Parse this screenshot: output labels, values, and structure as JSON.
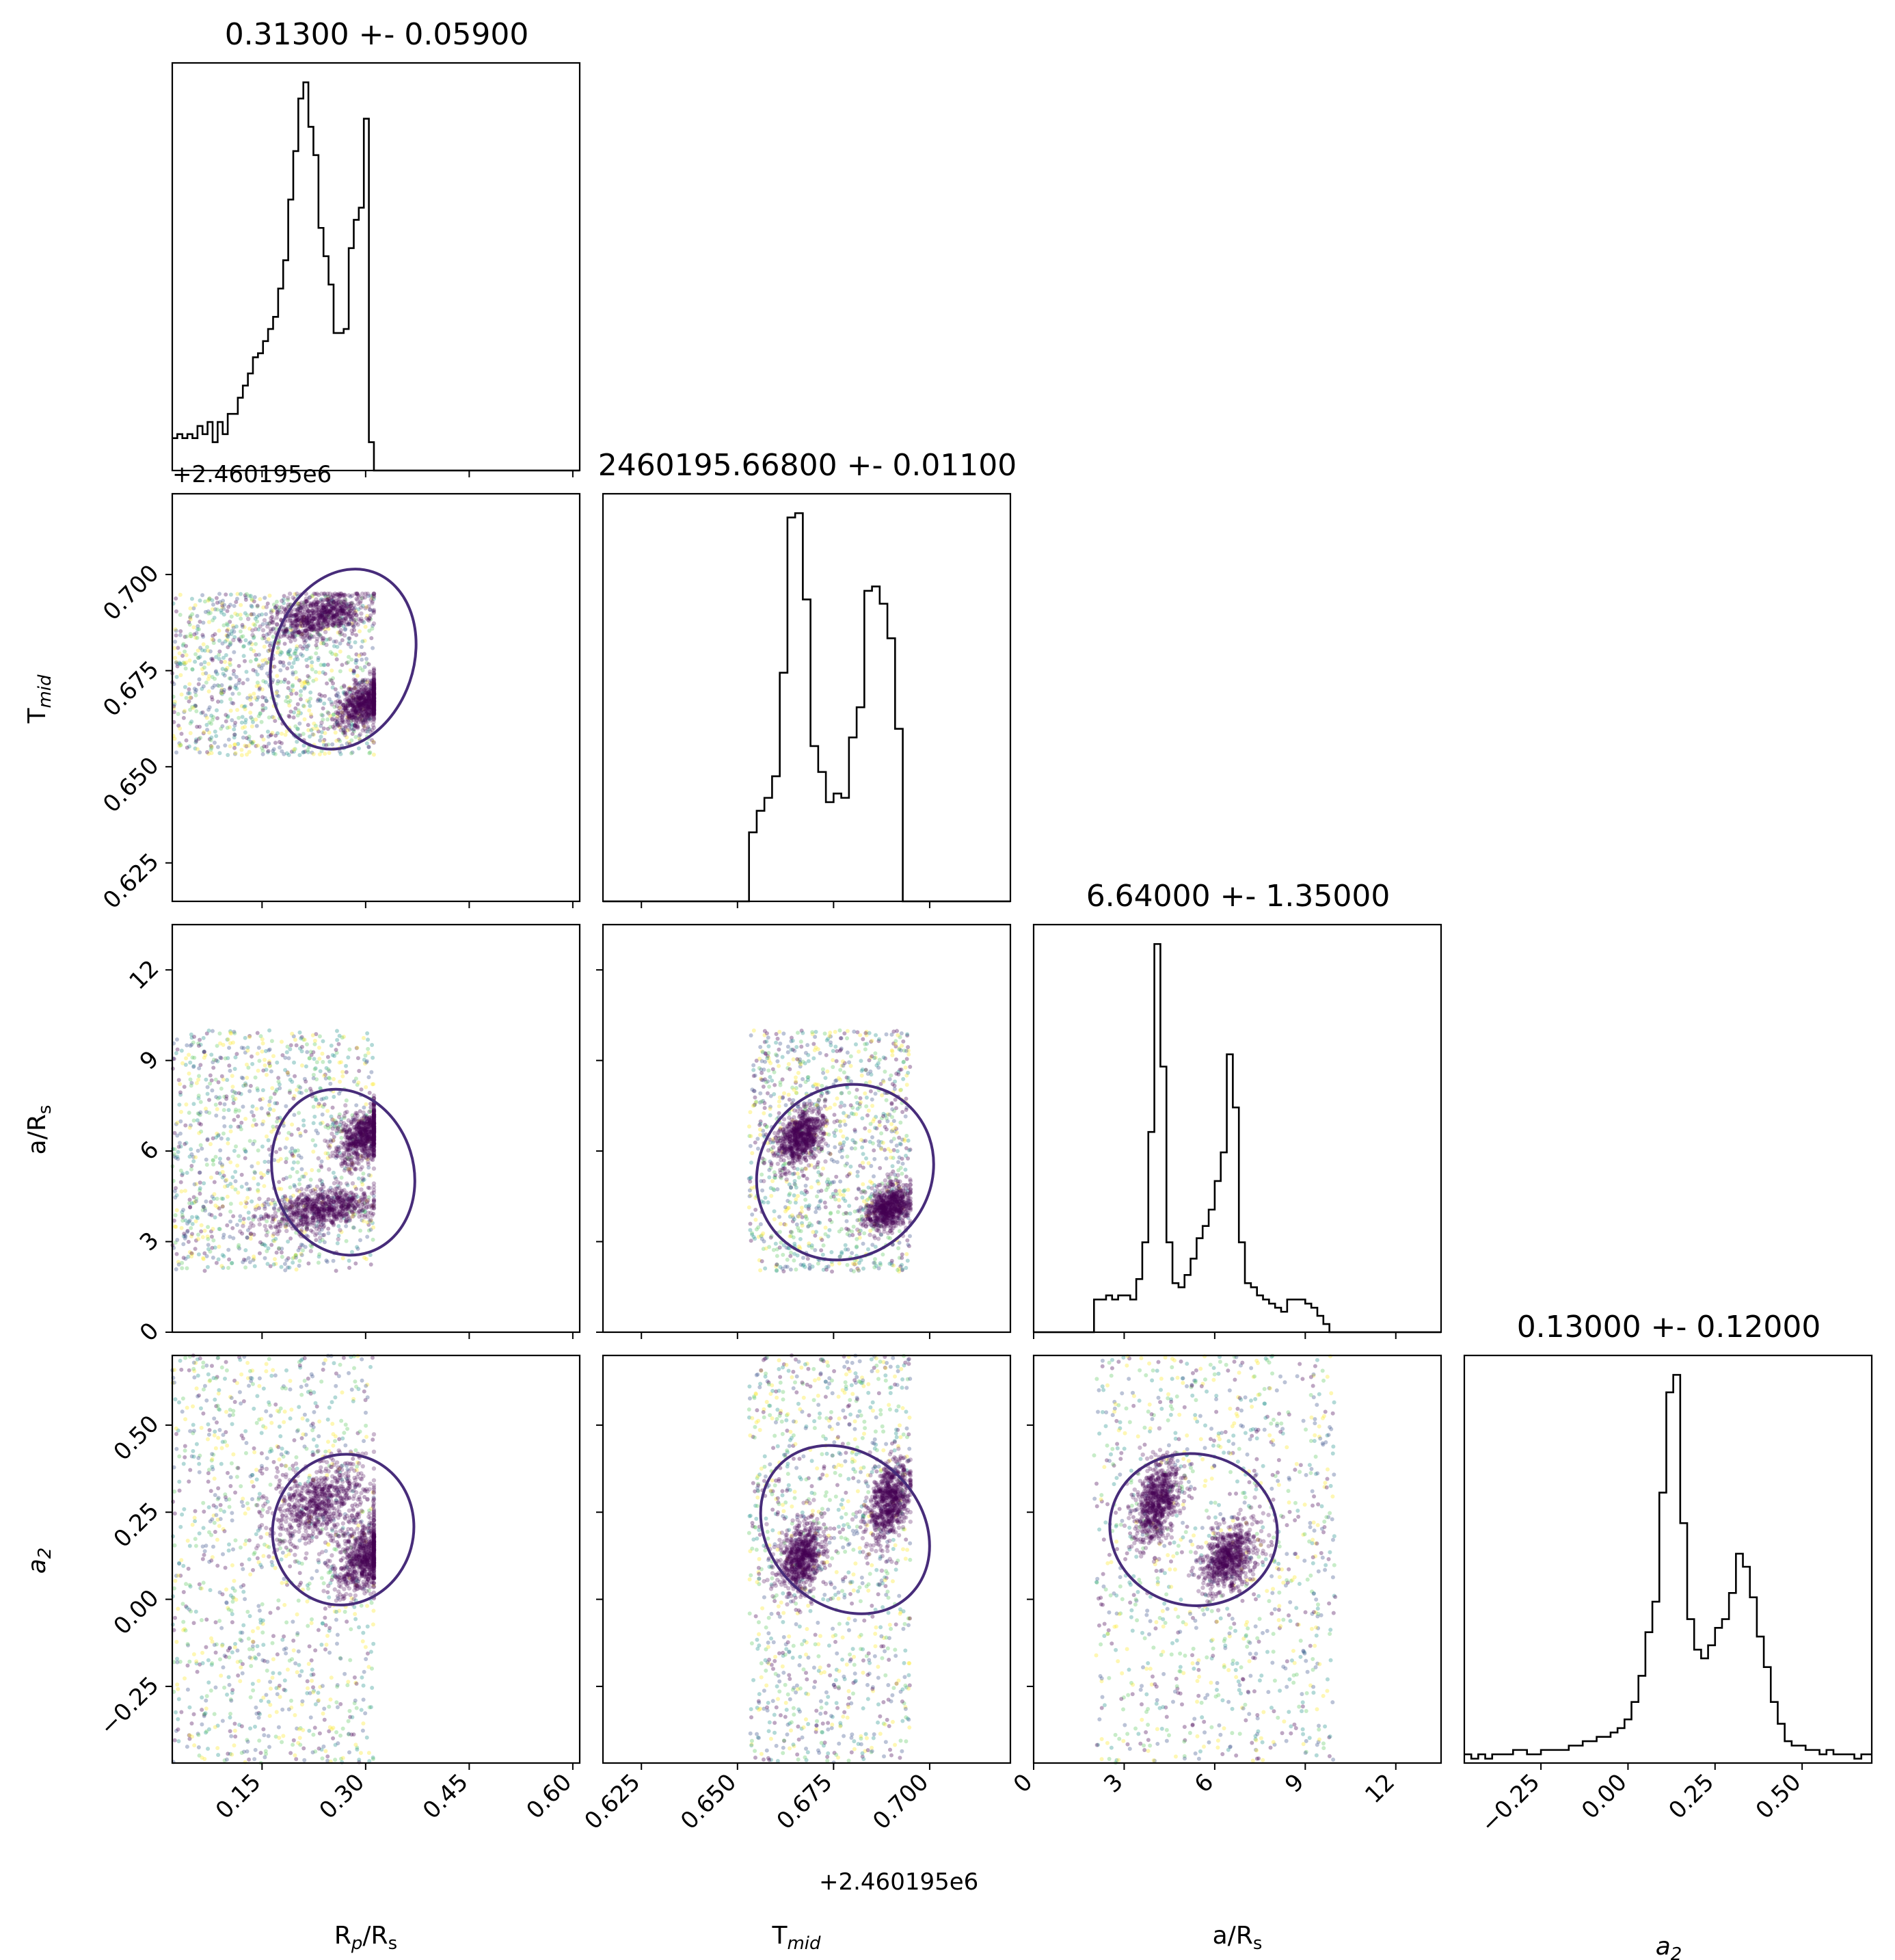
{
  "chart_data": {
    "type": "corner",
    "parameters": [
      "Rp/Rs",
      "Tmid",
      "a/Rs",
      "a2"
    ],
    "axis_labels": {
      "Rp/Rs": {
        "main": "R",
        "sub1": "p",
        "mid": "/R",
        "sub2": "s"
      },
      "Tmid": {
        "main": "T",
        "sub1": "mid",
        "mid": "",
        "sub2": ""
      },
      "a/Rs": {
        "main": "a/R",
        "sub1": "s",
        "mid": "",
        "sub2": ""
      },
      "a2": {
        "main": "a",
        "sub1": "2",
        "mid": "",
        "sub2": ""
      }
    },
    "titles": [
      "0.31300 +- 0.05900",
      "2460195.66800 +- 0.01100",
      "6.64000 +- 1.35000",
      "0.13000 +- 0.12000"
    ],
    "offset_labels": {
      "tmid_y": "+2.460195e6",
      "tmid_x": "+2.460195e6"
    },
    "ranges": {
      "Rp/Rs": [
        0.02,
        0.61
      ],
      "Tmid": [
        0.615,
        0.721
      ],
      "a/Rs": [
        0.0,
        13.5
      ],
      "a2": [
        -0.47,
        0.7
      ]
    },
    "ticks": {
      "Rp/Rs": [
        0.15,
        0.3,
        0.45,
        0.6
      ],
      "Tmid": [
        0.625,
        0.65,
        0.675,
        0.7
      ],
      "a/Rs": [
        0,
        3,
        6,
        9,
        12
      ],
      "a2": [
        -0.25,
        0.0,
        0.25,
        0.5
      ]
    },
    "tick_labels": {
      "Rp/Rs": [
        "0.15",
        "0.30",
        "0.45",
        "0.60"
      ],
      "Tmid": [
        "0.625",
        "0.650",
        "0.675",
        "0.700"
      ],
      "a/Rs": [
        "0",
        "3",
        "6",
        "9",
        "12"
      ],
      "a2": [
        "−0.25",
        "0.00",
        "0.25",
        "0.50"
      ]
    },
    "histograms": {
      "Rp/Rs": {
        "bins": [
          0.02,
          0.0273,
          0.0346,
          0.0419,
          0.0492,
          0.0565,
          0.0638,
          0.0711,
          0.0784,
          0.0857,
          0.093,
          0.1003,
          0.1076,
          0.1149,
          0.1222,
          0.1295,
          0.1368,
          0.1441,
          0.1514,
          0.1587,
          0.166,
          0.1733,
          0.1806,
          0.1879,
          0.1952,
          0.2025,
          0.2098,
          0.2171,
          0.2244,
          0.2317,
          0.239,
          0.2463,
          0.2536,
          0.2609,
          0.2682,
          0.2755,
          0.2828,
          0.2901,
          0.2974,
          0.3047,
          0.312,
          0.61
        ],
        "counts": [
          0.08,
          0.09,
          0.08,
          0.09,
          0.08,
          0.11,
          0.09,
          0.12,
          0.07,
          0.12,
          0.09,
          0.14,
          0.14,
          0.18,
          0.21,
          0.24,
          0.28,
          0.29,
          0.32,
          0.35,
          0.38,
          0.45,
          0.52,
          0.67,
          0.79,
          0.92,
          0.96,
          0.85,
          0.78,
          0.6,
          0.53,
          0.46,
          0.34,
          0.34,
          0.35,
          0.55,
          0.62,
          0.65,
          0.87,
          0.07,
          0.0
        ]
      },
      "Tmid": {
        "bins": [
          0.615,
          0.653,
          0.655,
          0.657,
          0.659,
          0.661,
          0.663,
          0.665,
          0.667,
          0.669,
          0.671,
          0.673,
          0.675,
          0.677,
          0.679,
          0.681,
          0.683,
          0.685,
          0.687,
          0.689,
          0.691,
          0.693,
          0.695,
          0.721
        ],
        "counts": [
          0.0,
          0.16,
          0.21,
          0.24,
          0.29,
          0.53,
          0.89,
          0.9,
          0.7,
          0.36,
          0.3,
          0.23,
          0.25,
          0.24,
          0.38,
          0.45,
          0.72,
          0.73,
          0.69,
          0.61,
          0.4,
          0.0,
          0.0
        ]
      },
      "a/Rs": {
        "bins": [
          0.0,
          2.0,
          2.2,
          2.4,
          2.6,
          2.8,
          3.0,
          3.2,
          3.4,
          3.6,
          3.8,
          4.0,
          4.2,
          4.4,
          4.6,
          4.8,
          5.0,
          5.2,
          5.4,
          5.6,
          5.8,
          6.0,
          6.2,
          6.4,
          6.6,
          6.8,
          7.0,
          7.2,
          7.4,
          7.6,
          7.8,
          8.0,
          8.2,
          8.4,
          8.6,
          8.8,
          9.0,
          9.2,
          9.4,
          9.6,
          9.8,
          10.0,
          13.5
        ],
        "counts": [
          0.0,
          0.08,
          0.08,
          0.09,
          0.08,
          0.09,
          0.09,
          0.08,
          0.13,
          0.22,
          0.49,
          0.95,
          0.65,
          0.22,
          0.12,
          0.11,
          0.14,
          0.18,
          0.23,
          0.26,
          0.3,
          0.37,
          0.44,
          0.68,
          0.55,
          0.22,
          0.12,
          0.11,
          0.09,
          0.08,
          0.07,
          0.06,
          0.05,
          0.08,
          0.08,
          0.08,
          0.07,
          0.06,
          0.04,
          0.02,
          0.0,
          0.0
        ]
      },
      "a2": {
        "bins": [
          -0.47,
          -0.45,
          -0.43,
          -0.41,
          -0.39,
          -0.37,
          -0.35,
          -0.33,
          -0.31,
          -0.29,
          -0.27,
          -0.25,
          -0.23,
          -0.21,
          -0.19,
          -0.17,
          -0.15,
          -0.13,
          -0.11,
          -0.09,
          -0.07,
          -0.05,
          -0.03,
          -0.01,
          0.01,
          0.03,
          0.05,
          0.07,
          0.09,
          0.11,
          0.13,
          0.15,
          0.17,
          0.19,
          0.21,
          0.23,
          0.25,
          0.27,
          0.29,
          0.31,
          0.33,
          0.35,
          0.37,
          0.39,
          0.41,
          0.43,
          0.45,
          0.47,
          0.49,
          0.51,
          0.53,
          0.55,
          0.57,
          0.59,
          0.61,
          0.63,
          0.65,
          0.67,
          0.7
        ],
        "counts": [
          0.02,
          0.01,
          0.02,
          0.01,
          0.02,
          0.02,
          0.02,
          0.03,
          0.03,
          0.02,
          0.02,
          0.03,
          0.03,
          0.03,
          0.03,
          0.04,
          0.04,
          0.05,
          0.05,
          0.06,
          0.06,
          0.07,
          0.08,
          0.1,
          0.14,
          0.2,
          0.3,
          0.37,
          0.62,
          0.85,
          0.89,
          0.55,
          0.33,
          0.26,
          0.24,
          0.27,
          0.31,
          0.33,
          0.39,
          0.48,
          0.45,
          0.38,
          0.29,
          0.22,
          0.14,
          0.09,
          0.05,
          0.04,
          0.04,
          0.03,
          0.03,
          0.02,
          0.03,
          0.02,
          0.02,
          0.02,
          0.01,
          0.02
        ]
      }
    },
    "scatter_clusters": {
      "Rp/Rs": [
        [
          0.235,
          0.05
        ],
        [
          0.305,
          0.02
        ],
        [
          0.2,
          0.06
        ]
      ],
      "Tmid": [
        [
          0.69,
          0.004
        ],
        [
          0.669,
          0.003
        ],
        [
          0.68,
          0.008
        ]
      ],
      "a/Rs": [
        [
          4.1,
          0.4
        ],
        [
          6.5,
          0.5
        ],
        [
          5.5,
          1.6
        ]
      ],
      "a2": [
        [
          0.28,
          0.07
        ],
        [
          0.12,
          0.05
        ],
        [
          0.15,
          0.12
        ]
      ]
    },
    "colors": {
      "dense": "#440154",
      "contour_inner": "#472c7a",
      "contour_outer": "#21918c",
      "contour_far": "#fde725",
      "sparse": [
        "#3b528b",
        "#21918c",
        "#5ec962",
        "#fde725",
        "#440154"
      ]
    }
  }
}
